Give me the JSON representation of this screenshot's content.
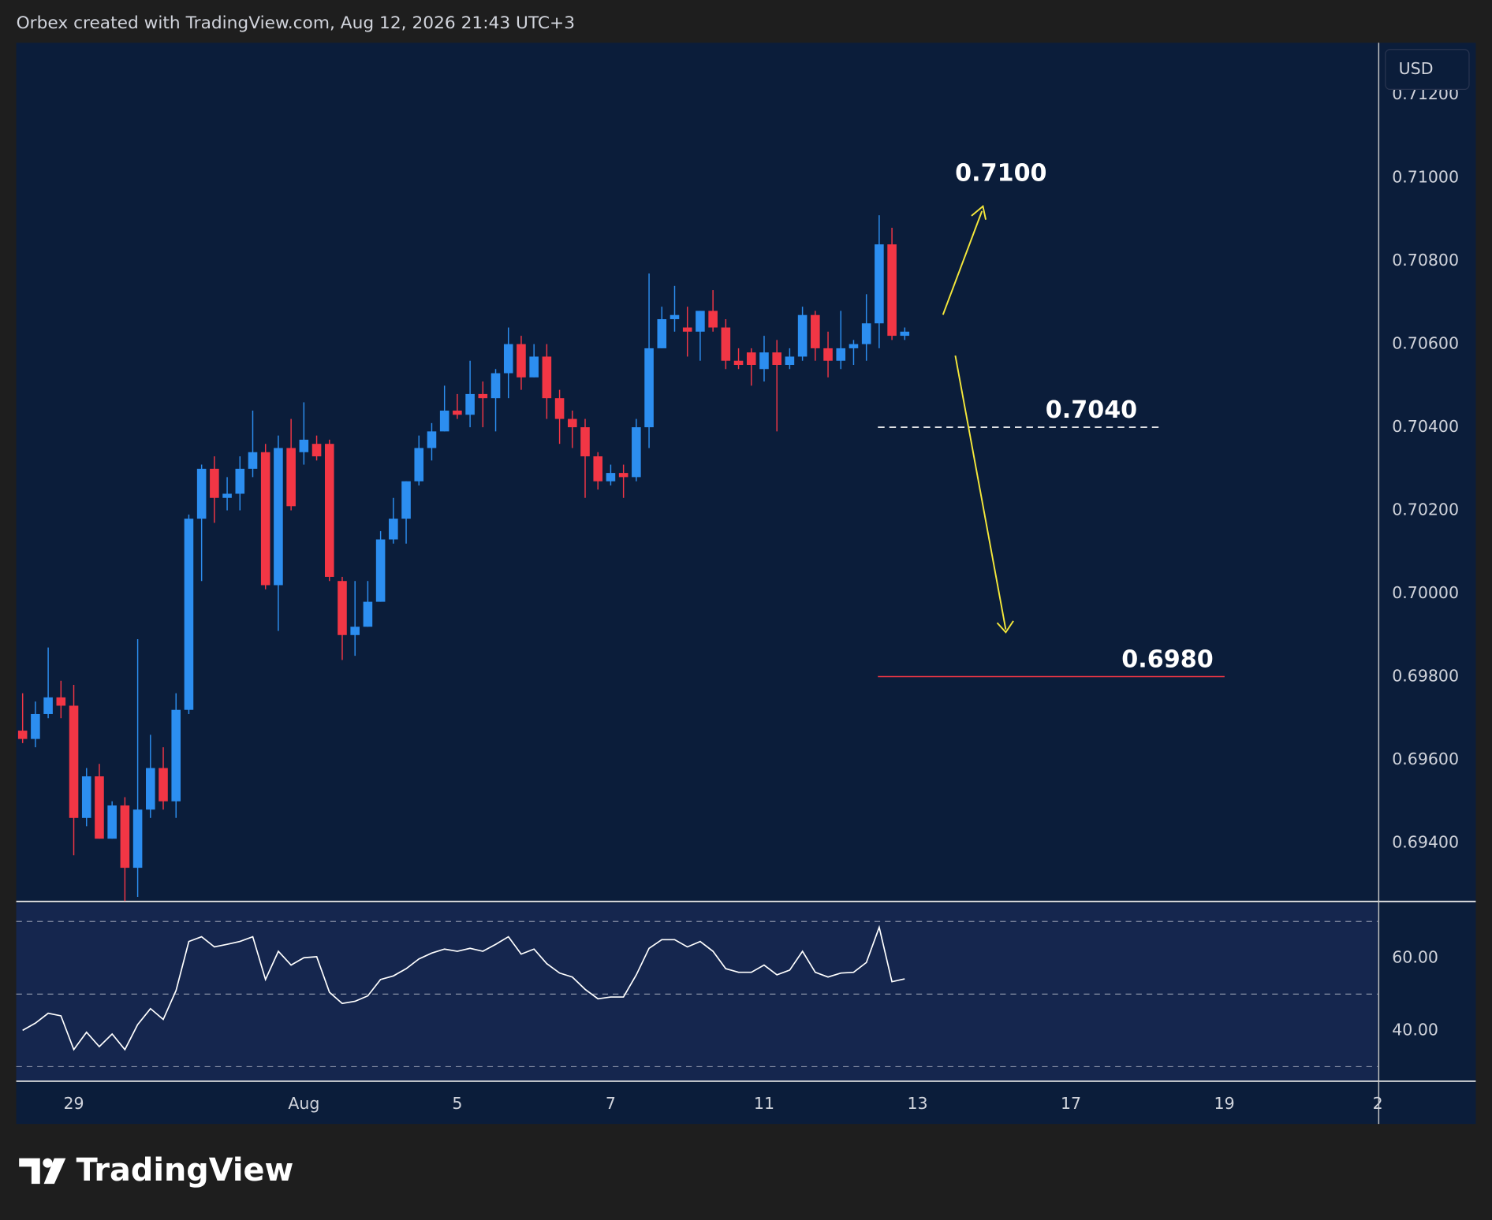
{
  "header": "Orbex created with TradingView.com, Aug 12, 2026 21:43 UTC+3",
  "footer": {
    "brand": "TradingView"
  },
  "chart_data": {
    "type": "candlestick",
    "currency": "USD",
    "up_color": "#2c8ef0",
    "down_color": "#f23645",
    "grid": false,
    "xlim": [
      -0.5,
      106
    ],
    "xticks": [
      {
        "value": 4,
        "label": "29"
      },
      {
        "value": 22,
        "label": "Aug"
      },
      {
        "value": 34,
        "label": "5"
      },
      {
        "value": 46,
        "label": "7"
      },
      {
        "value": 58,
        "label": "11"
      },
      {
        "value": 70,
        "label": "13"
      },
      {
        "value": 82,
        "label": "17"
      },
      {
        "value": 94,
        "label": "19"
      },
      {
        "value": 106,
        "label": "2"
      }
    ],
    "ylim": [
      0.69259,
      0.71325
    ],
    "yticks": [
      {
        "value": 0.694,
        "label": "0.69400"
      },
      {
        "value": 0.696,
        "label": "0.69600"
      },
      {
        "value": 0.698,
        "label": "0.69800"
      },
      {
        "value": 0.7,
        "label": "0.70000"
      },
      {
        "value": 0.702,
        "label": "0.70200"
      },
      {
        "value": 0.704,
        "label": "0.70400"
      },
      {
        "value": 0.706,
        "label": "0.70600"
      },
      {
        "value": 0.708,
        "label": "0.70800"
      },
      {
        "value": 0.71,
        "label": "0.71000"
      },
      {
        "value": 0.712,
        "label": "0.71200"
      }
    ],
    "open": [
      0.6967,
      0.6965,
      0.6971,
      0.6975,
      0.6973,
      0.6946,
      0.6956,
      0.6941,
      0.6949,
      0.6934,
      0.6948,
      0.6958,
      0.695,
      0.6972,
      0.7018,
      0.703,
      0.7023,
      0.7024,
      0.703,
      0.7034,
      0.7002,
      0.7035,
      0.7034,
      0.7036,
      0.7036,
      0.7003,
      0.699,
      0.6992,
      0.6998,
      0.7013,
      0.7018,
      0.7027,
      0.7035,
      0.7039,
      0.7044,
      0.7043,
      0.7048,
      0.7047,
      0.7053,
      0.706,
      0.7052,
      0.7057,
      0.7047,
      0.7042,
      0.704,
      0.7033,
      0.7027,
      0.7029,
      0.7028,
      0.704,
      0.7059,
      0.7066,
      0.7064,
      0.7063,
      0.7068,
      0.7064,
      0.7056,
      0.7058,
      0.7054,
      0.7058,
      0.7055,
      0.7057,
      0.7067,
      0.7059,
      0.7056,
      0.7059,
      0.706,
      0.7065,
      0.7084,
      0.7062
    ],
    "high": [
      0.6976,
      0.6974,
      0.6987,
      0.6979,
      0.6978,
      0.6958,
      0.6959,
      0.695,
      0.6951,
      0.6989,
      0.6966,
      0.6963,
      0.6976,
      0.7019,
      0.7031,
      0.7033,
      0.7028,
      0.7033,
      0.7044,
      0.7036,
      0.7038,
      0.7042,
      0.7046,
      0.7038,
      0.7037,
      0.7004,
      0.7003,
      0.7003,
      0.7015,
      0.7023,
      0.7027,
      0.7038,
      0.7041,
      0.705,
      0.7048,
      0.7056,
      0.7051,
      0.7054,
      0.7064,
      0.7062,
      0.706,
      0.706,
      0.7049,
      0.7044,
      0.7042,
      0.7034,
      0.7031,
      0.7031,
      0.7042,
      0.7077,
      0.7069,
      0.7074,
      0.7069,
      0.7068,
      0.7073,
      0.7066,
      0.7059,
      0.7059,
      0.7062,
      0.7061,
      0.7059,
      0.7069,
      0.7068,
      0.7063,
      0.7068,
      0.7061,
      0.7072,
      0.7091,
      0.7088,
      0.7064
    ],
    "low": [
      0.6964,
      0.6963,
      0.697,
      0.697,
      0.6937,
      0.6944,
      0.6941,
      0.6941,
      0.6926,
      0.6927,
      0.6946,
      0.6948,
      0.6946,
      0.6971,
      0.7003,
      0.7017,
      0.702,
      0.702,
      0.7028,
      0.7001,
      0.6991,
      0.702,
      0.7031,
      0.7032,
      0.7003,
      0.6984,
      0.6985,
      0.6992,
      0.6998,
      0.7012,
      0.7012,
      0.7026,
      0.7032,
      0.7039,
      0.7042,
      0.704,
      0.704,
      0.7039,
      0.7047,
      0.7049,
      0.7052,
      0.7042,
      0.7036,
      0.7035,
      0.7023,
      0.7025,
      0.7026,
      0.7023,
      0.7027,
      0.7035,
      0.7059,
      0.7063,
      0.7057,
      0.7056,
      0.7063,
      0.7054,
      0.7054,
      0.705,
      0.7051,
      0.7039,
      0.7054,
      0.7056,
      0.7056,
      0.7052,
      0.7054,
      0.7055,
      0.7056,
      0.7059,
      0.7061,
      0.7061
    ],
    "close": [
      0.6965,
      0.6971,
      0.6975,
      0.6973,
      0.6946,
      0.6956,
      0.6941,
      0.6949,
      0.6934,
      0.6948,
      0.6958,
      0.695,
      0.6972,
      0.7018,
      0.703,
      0.7023,
      0.7024,
      0.703,
      0.7034,
      0.7002,
      0.7035,
      0.7021,
      0.7037,
      0.7033,
      0.7004,
      0.699,
      0.6992,
      0.6998,
      0.7013,
      0.7018,
      0.7027,
      0.7035,
      0.7039,
      0.7044,
      0.7043,
      0.7048,
      0.7047,
      0.7053,
      0.706,
      0.7052,
      0.7057,
      0.7047,
      0.7042,
      0.704,
      0.7033,
      0.7027,
      0.7029,
      0.7028,
      0.704,
      0.7059,
      0.7066,
      0.7067,
      0.7063,
      0.7068,
      0.7064,
      0.7056,
      0.7055,
      0.7055,
      0.7058,
      0.7055,
      0.7057,
      0.7067,
      0.7059,
      0.7056,
      0.7059,
      0.706,
      0.7065,
      0.7084,
      0.7062,
      0.7063
    ],
    "annotations": [
      {
        "label": "0.7100",
        "value": 0.71,
        "color": "#ffffff"
      },
      {
        "label": "0.7040",
        "value": 0.704,
        "style": "dashed",
        "color": "#ffffff"
      },
      {
        "label": "0.6980",
        "value": 0.698,
        "style": "solid",
        "color": "#f23645"
      }
    ],
    "rsi": {
      "color": "#ffffff",
      "ylim": [
        26,
        75
      ],
      "yticks": [
        {
          "value": 40,
          "label": "40.00"
        },
        {
          "value": 60,
          "label": "60.00"
        }
      ],
      "levels": [
        70,
        50,
        30
      ],
      "values": [
        40,
        42,
        44.7,
        44,
        34.7,
        39.5,
        35.5,
        39,
        34.7,
        41.6,
        46,
        43,
        51,
        64.5,
        65.8,
        63,
        63.7,
        64.5,
        65.8,
        54,
        61.8,
        58,
        60,
        60.3,
        50.5,
        47.4,
        48,
        49.5,
        54,
        55,
        57,
        59.7,
        61.3,
        62.4,
        61.8,
        62.6,
        61.8,
        63.7,
        65.8,
        61,
        62.4,
        58.4,
        55.8,
        54.7,
        51.3,
        48.7,
        49.2,
        49.2,
        55.3,
        62.6,
        65,
        65,
        63,
        64.5,
        61.8,
        57,
        56,
        56,
        58,
        55.3,
        56.6,
        61.8,
        56,
        54.7,
        55.8,
        56,
        58.7,
        68.4,
        53.4,
        54.2
      ]
    }
  }
}
